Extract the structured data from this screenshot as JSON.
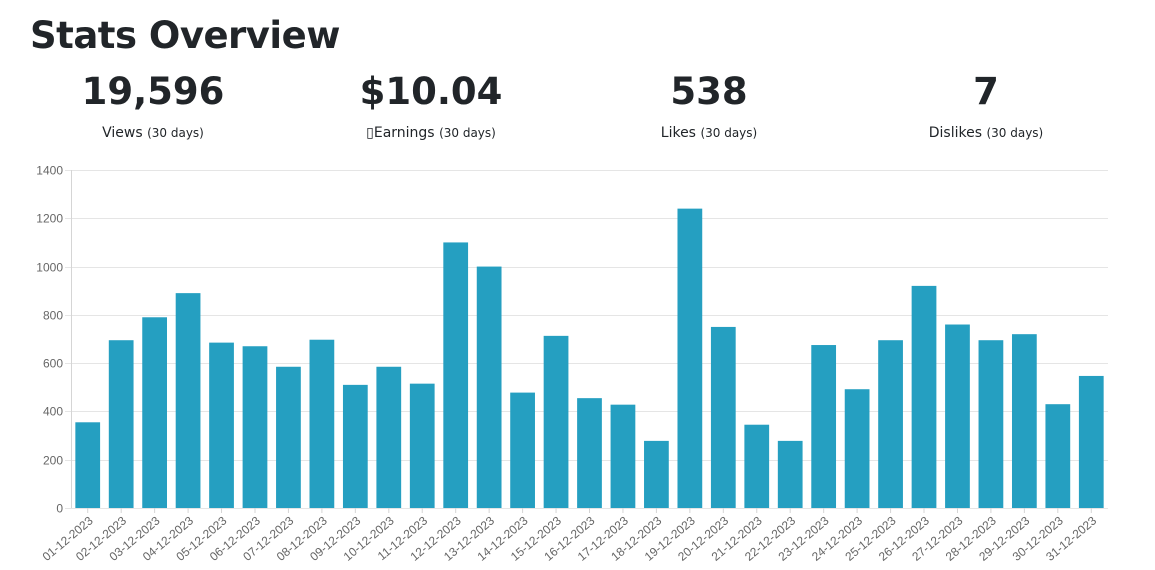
{
  "page": {
    "title": "Stats Overview"
  },
  "stats": [
    {
      "value": "19,596",
      "label": "Views",
      "period": "(30 days)"
    },
    {
      "value": "$10.04",
      "label": "▯Earnings",
      "period": "(30 days)"
    },
    {
      "value": "538",
      "label": "Likes",
      "period": "(30 days)"
    },
    {
      "value": "7",
      "label": "Dislikes",
      "period": "(30 days)"
    }
  ],
  "colors": {
    "bar": "#259fc1",
    "text": "#212529"
  },
  "chart_data": {
    "type": "bar",
    "categories": [
      "01-12-2023",
      "02-12-2023",
      "03-12-2023",
      "04-12-2023",
      "05-12-2023",
      "06-12-2023",
      "07-12-2023",
      "08-12-2023",
      "09-12-2023",
      "10-12-2023",
      "11-12-2023",
      "12-12-2023",
      "13-12-2023",
      "14-12-2023",
      "15-12-2023",
      "16-12-2023",
      "17-12-2023",
      "18-12-2023",
      "19-12-2023",
      "20-12-2023",
      "21-12-2023",
      "22-12-2023",
      "23-12-2023",
      "24-12-2023",
      "25-12-2023",
      "26-12-2023",
      "27-12-2023",
      "28-12-2023",
      "29-12-2023",
      "30-12-2023",
      "31-12-2023"
    ],
    "values": [
      355,
      695,
      790,
      890,
      685,
      670,
      585,
      697,
      510,
      585,
      515,
      1100,
      1000,
      478,
      713,
      455,
      428,
      278,
      1240,
      750,
      345,
      278,
      675,
      492,
      695,
      920,
      760,
      695,
      720,
      430,
      547
    ],
    "yticks": [
      0,
      200,
      400,
      600,
      800,
      1000,
      1200,
      1400
    ],
    "ylim": [
      0,
      1400
    ],
    "grid": true,
    "legend": "none"
  }
}
